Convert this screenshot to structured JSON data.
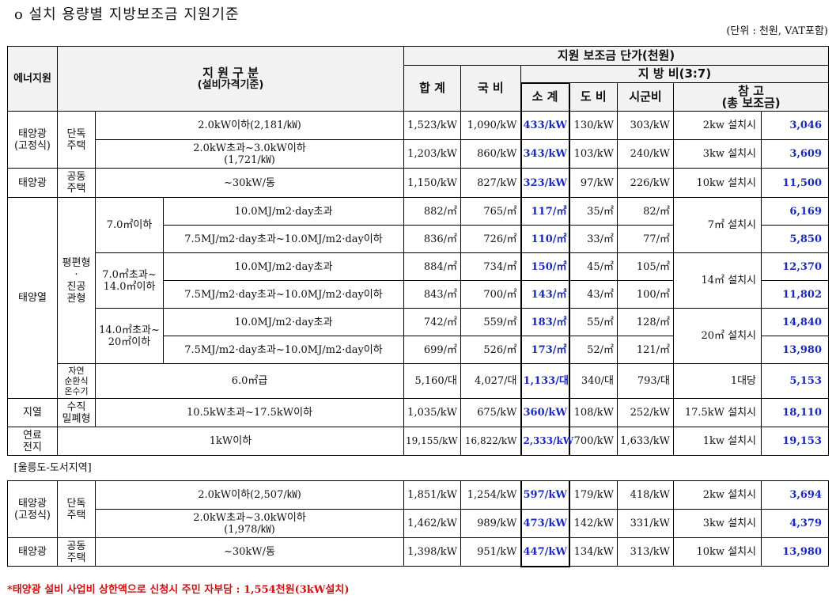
{
  "title": "o  설치 용량별 지방보조금 지원기준",
  "unit_note": "(단위 : 천원, VAT포함)",
  "header": {
    "energy": "에너지원",
    "division": "지 원 구 분",
    "division_sub": "(설비가격기준)",
    "unit_price": "지원 보조금 단가(천원)",
    "total": "합  계",
    "national": "국  비",
    "local": "지 방 비(3:7)",
    "subtotal": "소  계",
    "province": "도 비",
    "city": "시군비",
    "ref": "참        고",
    "ref_sub": "(총 보조금)"
  },
  "rows": {
    "r1": {
      "src": "태양광\n(고정식)",
      "type": "단독\n주택",
      "spec": "2.0kW이하(2,181/㎾)",
      "total": "1,523/kW",
      "nat": "1,090/kW",
      "sub": "433/kW",
      "prov": "130/kW",
      "city": "303/kW",
      "note": "2kw 설치시",
      "sum": "3,046"
    },
    "r2": {
      "spec": "2.0kW초과~3.0kW이하\n(1,721/㎾)",
      "total": "1,203/kW",
      "nat": "860/kW",
      "sub": "343/kW",
      "prov": "103/kW",
      "city": "240/kW",
      "note": "3kw 설치시",
      "sum": "3,609"
    },
    "r3": {
      "src": "태양광",
      "type": "공동\n주택",
      "spec": "~30kW/동",
      "total": "1,150/kW",
      "nat": "827/kW",
      "sub": "323/kW",
      "prov": "97/kW",
      "city": "226/kW",
      "note": "10kw 설치시",
      "sum": "11,500"
    },
    "r4": {
      "src": "태양열",
      "type": "평편형\n·\n진공\n관형",
      "area": "7.0㎡이하",
      "spec": "10.0MJ/m2·day초과",
      "total": "882/㎡",
      "nat": "765/㎡",
      "sub": "117/㎡",
      "prov": "35/㎡",
      "city": "82/㎡",
      "note": "7㎡ 설치시",
      "sum": "6,169"
    },
    "r5": {
      "spec": "7.5MJ/m2·day초과~10.0MJ/m2·day이하",
      "total": "836/㎡",
      "nat": "726/㎡",
      "sub": "110/㎡",
      "prov": "33/㎡",
      "city": "77/㎡",
      "sum": "5,850"
    },
    "r6": {
      "area": "7.0㎡초과~\n14.0㎡이하",
      "spec": "10.0MJ/m2·day초과",
      "total": "884/㎡",
      "nat": "734/㎡",
      "sub": "150/㎡",
      "prov": "45/㎡",
      "city": "105/㎡",
      "note": "14㎡ 설치시",
      "sum": "12,370"
    },
    "r7": {
      "spec": "7.5MJ/m2·day초과~10.0MJ/m2·day이하",
      "total": "843/㎡",
      "nat": "700/㎡",
      "sub": "143/㎡",
      "prov": "43/㎡",
      "city": "100/㎡",
      "sum": "11,802"
    },
    "r8": {
      "area": "14.0㎡초과~\n20㎡이하",
      "spec": "10.0MJ/m2·day초과",
      "total": "742/㎡",
      "nat": "559/㎡",
      "sub": "183/㎡",
      "prov": "55/㎡",
      "city": "128/㎡",
      "note": "20㎡ 설치시",
      "sum": "14,840"
    },
    "r9": {
      "spec": "7.5MJ/m2·day초과~10.0MJ/m2·day이하",
      "total": "699/㎡",
      "nat": "526/㎡",
      "sub": "173/㎡",
      "prov": "52/㎡",
      "city": "121/㎡",
      "sum": "13,980"
    },
    "r10": {
      "type": "자연\n순환식\n온수기",
      "spec": "6.0㎡급",
      "total": "5,160/대",
      "nat": "4,027/대",
      "sub": "1,133/대",
      "prov": "340/대",
      "city": "793/대",
      "note": "1대당",
      "sum": "5,153"
    },
    "r11": {
      "src": "지열",
      "type": "수직\n밀폐형",
      "spec": "10.5kW초과~17.5kW이하",
      "total": "1,035/kW",
      "nat": "675/kW",
      "sub": "360/kW",
      "prov": "108/kW",
      "city": "252/kW",
      "note": "17.5kW 설치시",
      "sum": "18,110"
    },
    "r12": {
      "src": "연료\n전지",
      "spec": "1kW이하",
      "total": "19,155/kW",
      "nat": "16,822/kW",
      "sub": "2,333/kW",
      "prov": "700/kW",
      "city": "1,633/kW",
      "note": "1kw 설치시",
      "sum": "19,153"
    },
    "region": "[울릉도-도서지역]",
    "r13": {
      "src": "태양광\n(고정식)",
      "type": "단독\n주택",
      "spec": "2.0kW이하(2,507/㎾)",
      "total": "1,851/kW",
      "nat": "1,254/kW",
      "sub": "597/kW",
      "prov": "179/kW",
      "city": "418/kW",
      "note": "2kw 설치시",
      "sum": "3,694"
    },
    "r14": {
      "spec": "2.0kW초과~3.0kW이하\n(1,978/㎾)",
      "total": "1,462/kW",
      "nat": "989/kW",
      "sub": "473/kW",
      "prov": "142/kW",
      "city": "331/kW",
      "note": "3kw 설치시",
      "sum": "4,379"
    },
    "r15": {
      "src": "태양광",
      "type": "공동\n주택",
      "spec": "~30kW/동",
      "total": "1,398/kW",
      "nat": "951/kW",
      "sub": "447/kW",
      "prov": "134/kW",
      "city": "313/kW",
      "note": "10kw 설치시",
      "sum": "13,980"
    }
  },
  "footnote": "*태양광 설비 사업비 상한액으로 신청시 주민 자부담 : 1,554천원(3kW설치)"
}
